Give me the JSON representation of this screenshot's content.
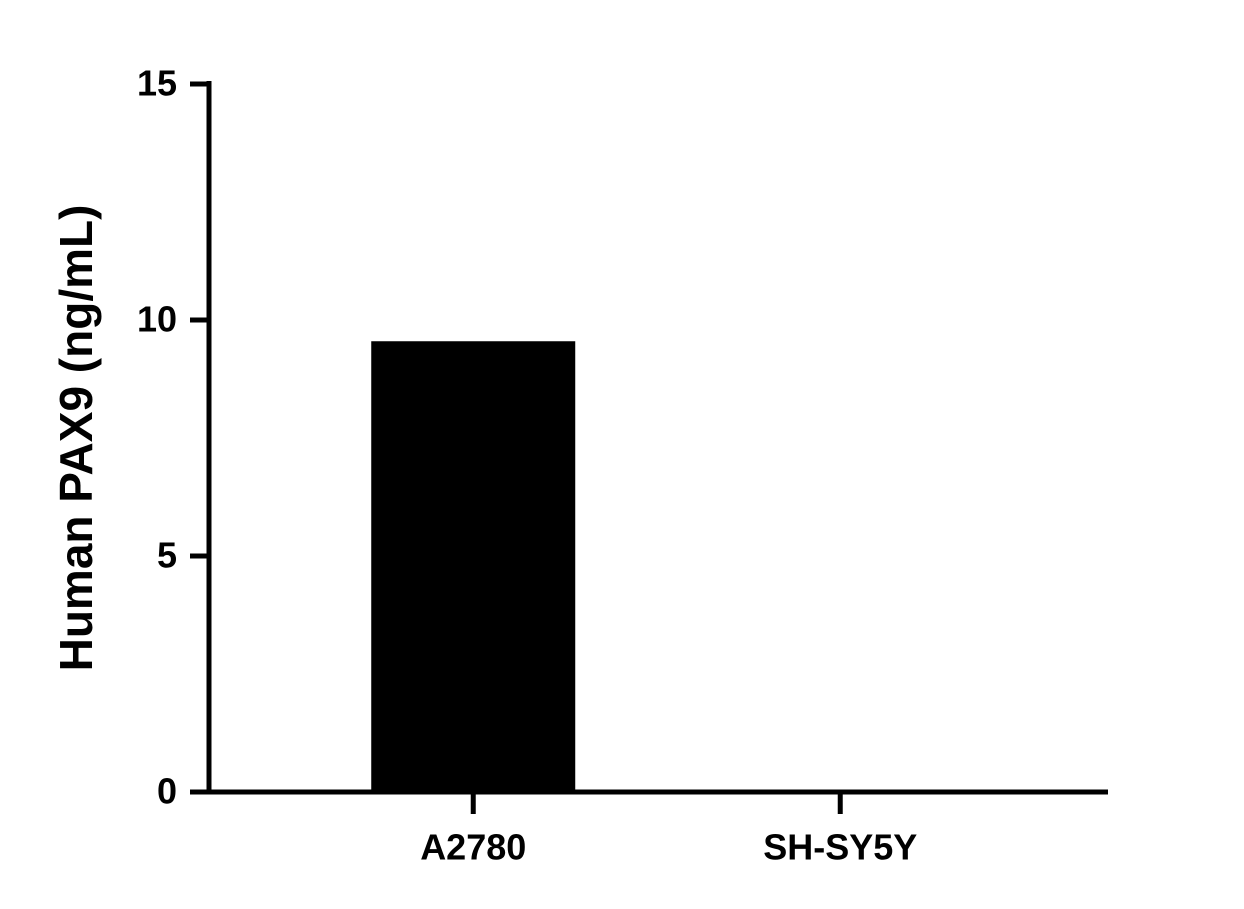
{
  "chart_data": {
    "type": "bar",
    "y_label": "Human PAX9 (ng/mL)",
    "categories": [
      "A2780",
      "SH-SY5Y"
    ],
    "values": [
      9.55,
      0
    ],
    "color": "#000000",
    "ylim": [
      0,
      15
    ],
    "yticks": [
      0,
      5,
      10,
      15
    ],
    "grid": false
  }
}
